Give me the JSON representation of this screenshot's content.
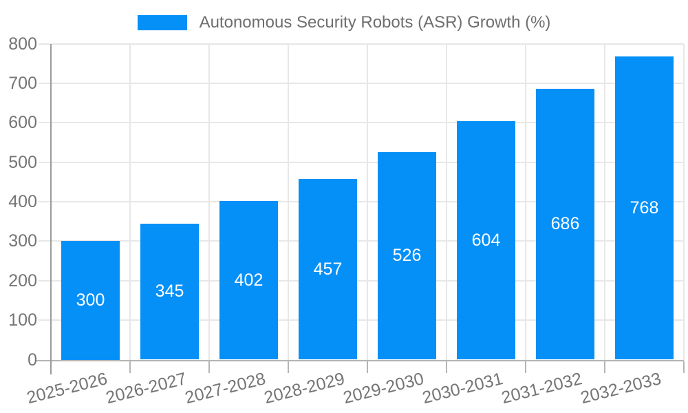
{
  "chart_data": {
    "type": "bar",
    "title": "",
    "legend_label": "Autonomous Security Robots (ASR) Growth (%)",
    "legend_position": "top-center",
    "categories": [
      "2025-2026",
      "2026-2027",
      "2027-2028",
      "2028-2029",
      "2029-2030",
      "2030-2031",
      "2031-2032",
      "2032-2033"
    ],
    "values": [
      300,
      345,
      402,
      457,
      526,
      604,
      686,
      768
    ],
    "xlabel": "",
    "ylabel": "",
    "ylim": [
      0,
      800
    ],
    "ytick_labels": [
      "0",
      "100",
      "200",
      "300",
      "400",
      "500",
      "600",
      "700",
      "800"
    ],
    "grid": "on",
    "colors": {
      "bar": "#0590f8",
      "value_label": "#ffffff",
      "axis_text": "#757575",
      "legend_text": "#6e6e6e",
      "gridline": "#e7e7e7",
      "zero_line": "#b5b5b5",
      "axis_line": "#9b9b9b",
      "background": "#ffffff"
    }
  }
}
